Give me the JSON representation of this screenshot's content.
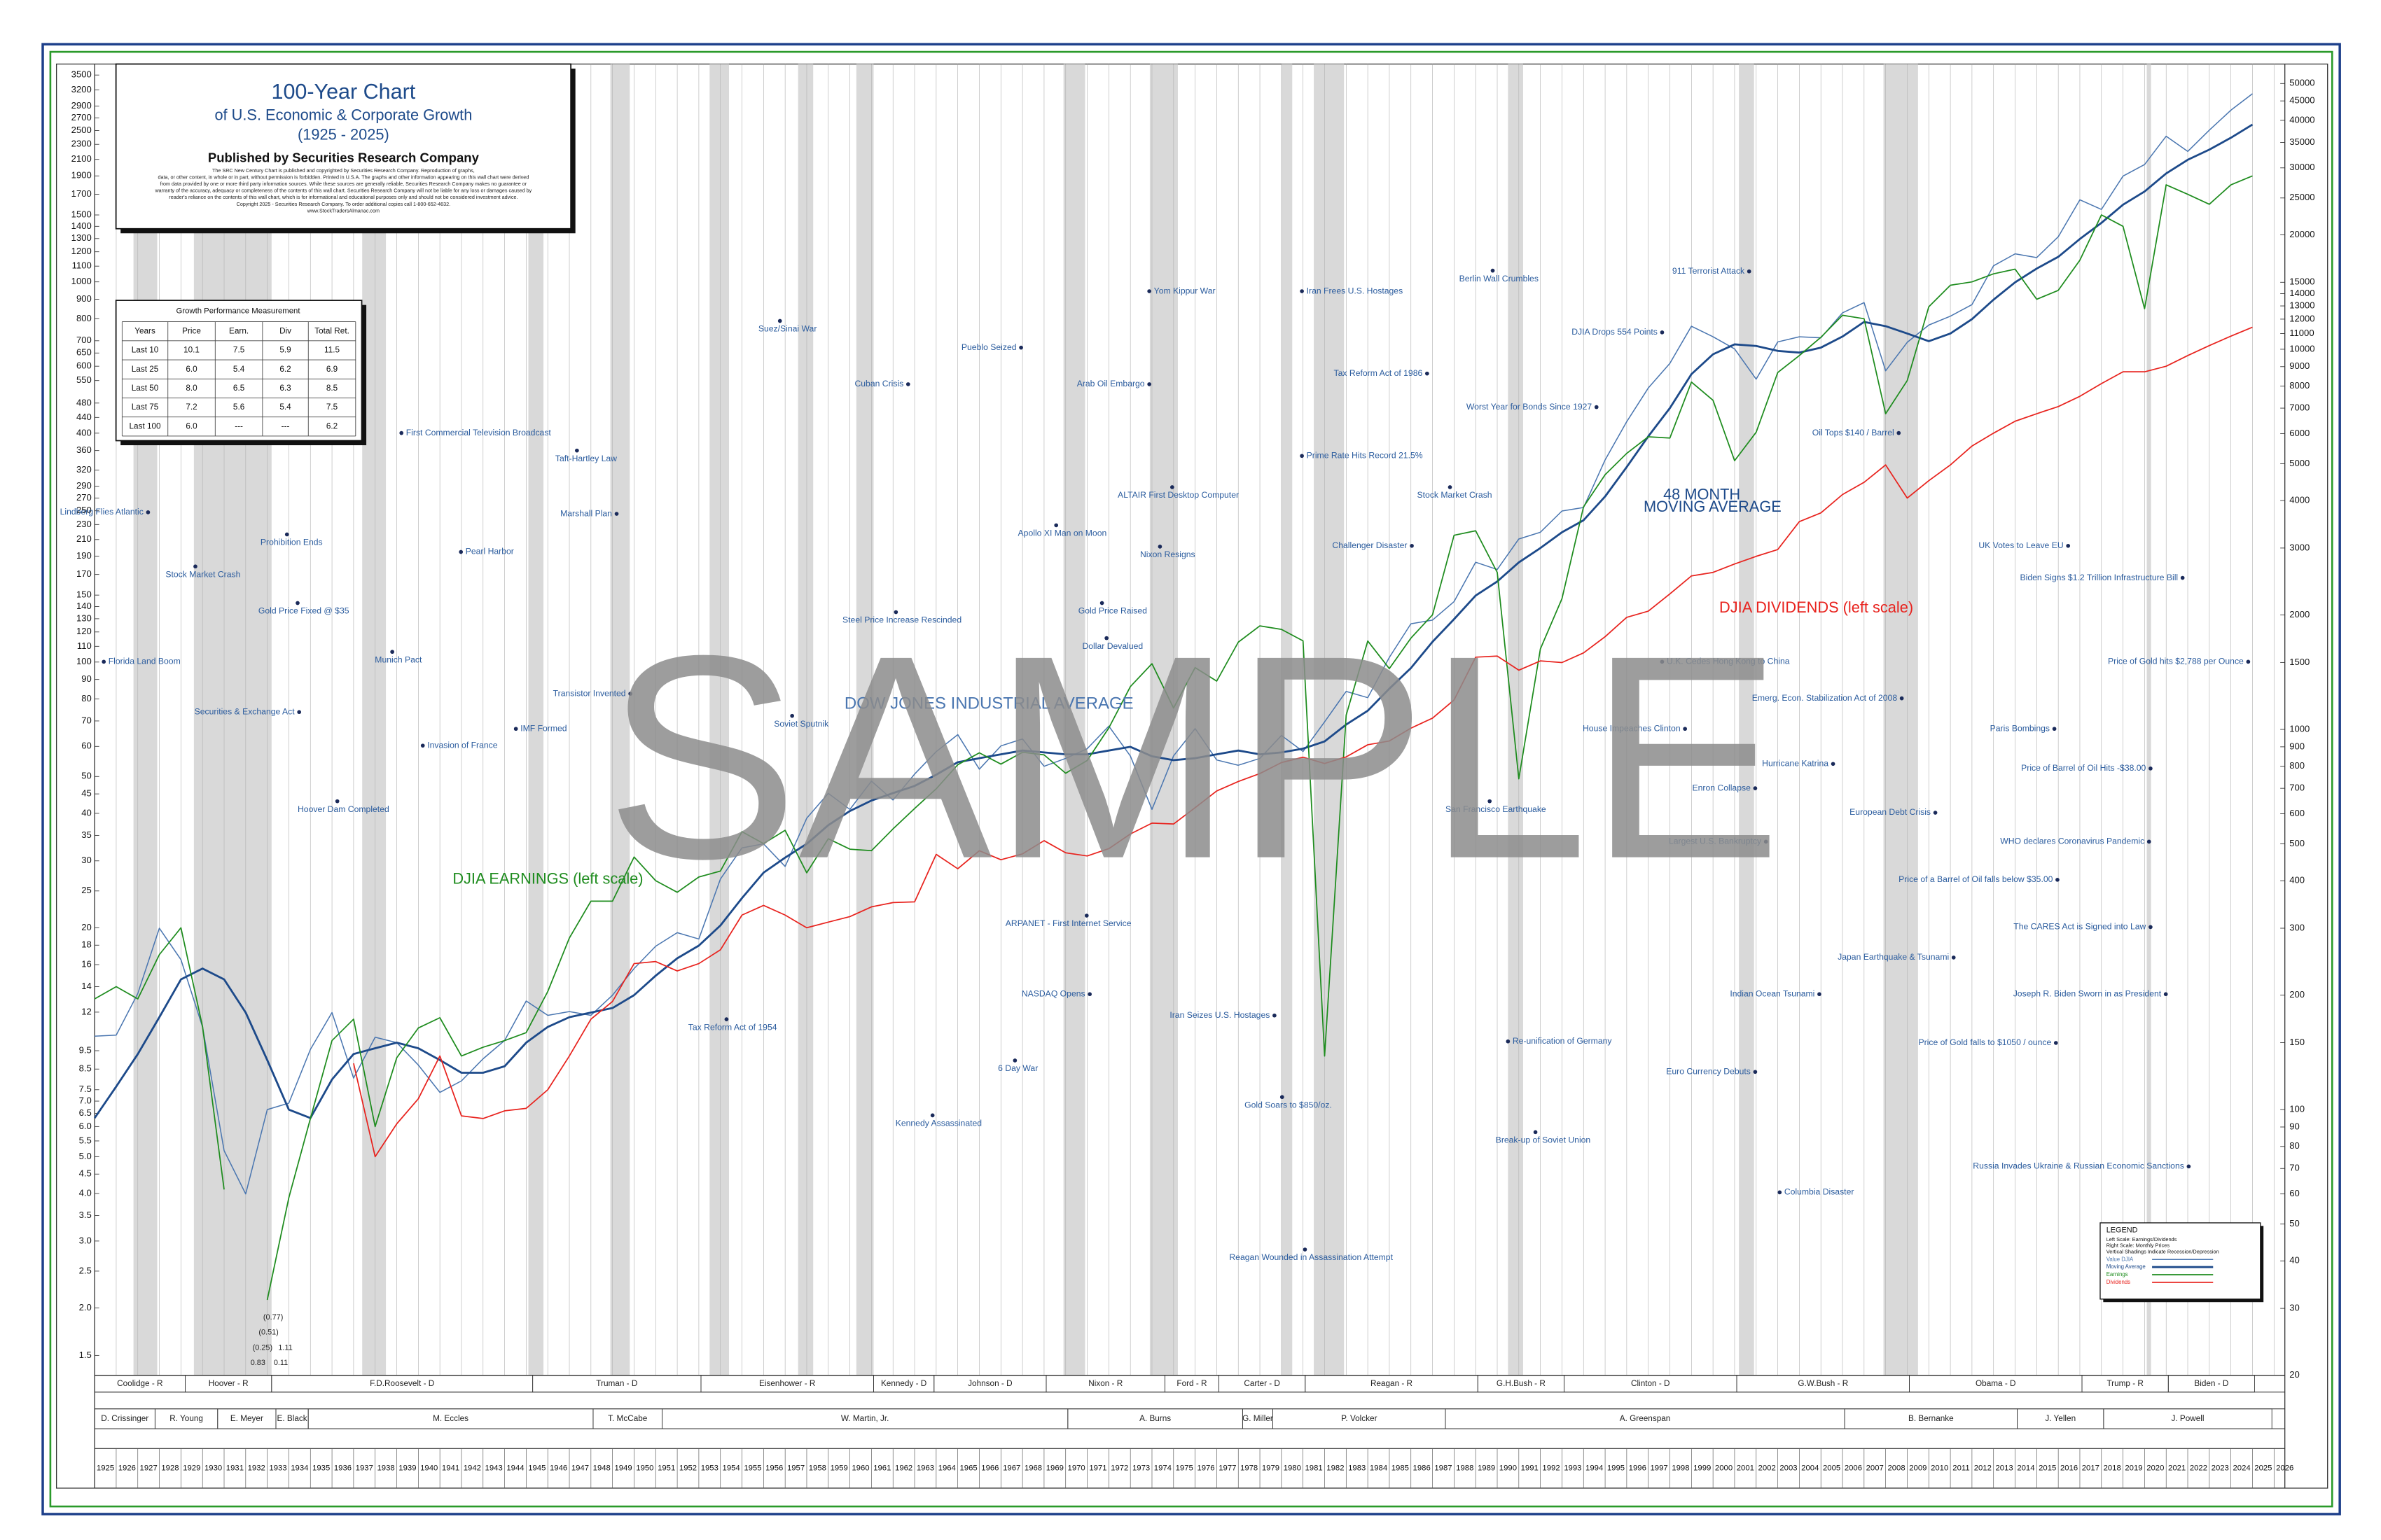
{
  "chart_data": {
    "type": "line",
    "title": "100-Year Chart",
    "subtitle": "of U.S. Economic & Corporate Growth",
    "period": "(1925 - 2025)",
    "publisher": "Published by Securities Research Company",
    "disclaimer": [
      "The SRC New Century Chart is published and copyrighted by Securities Research Company. Reproduction of graphs,",
      "data, or other content, in whole or in part, without permission is forbidden. Printed in U.S.A. The graphs and other information appearing on this wall chart were derived",
      "from data provided by one or more third party information sources. While these sources are generally reliable, Securities Research Company makes no guarantee or",
      "warranty of the accuracy, adequacy or completeness of the contents of this wall chart. Securities Research Company will not be liable for any loss or damages caused by",
      "reader's reliance on the contents of this wall chart, which is for informational and educational purposes only and should not be considered investment advice.",
      "Copyright 2025 - Securities Research Company. To order additional copies call 1-800-652-4632.",
      "www.StockTradersAlmanac.com"
    ],
    "watermark": "SAMPLE",
    "log_scale": true,
    "xlim": [
      1925,
      2026.5
    ],
    "ylim": [
      1.33,
      3741
    ],
    "y2lim": [
      20,
      56260
    ],
    "x": [
      1925,
      1926,
      1927,
      1928,
      1929,
      1930,
      1931,
      1932,
      1933,
      1934,
      1935,
      1936,
      1937,
      1938,
      1939,
      1940,
      1941,
      1942,
      1943,
      1944,
      1945,
      1946,
      1947,
      1948,
      1949,
      1950,
      1951,
      1952,
      1953,
      1954,
      1955,
      1956,
      1957,
      1958,
      1959,
      1960,
      1961,
      1962,
      1963,
      1964,
      1965,
      1966,
      1967,
      1968,
      1969,
      1970,
      1971,
      1972,
      1973,
      1974,
      1975,
      1976,
      1977,
      1978,
      1979,
      1980,
      1981,
      1982,
      1983,
      1984,
      1985,
      1986,
      1987,
      1988,
      1989,
      1990,
      1991,
      1992,
      1993,
      1994,
      1995,
      1996,
      1997,
      1998,
      1999,
      2000,
      2001,
      2002,
      2003,
      2004,
      2005,
      2006,
      2007,
      2008,
      2009,
      2010,
      2011,
      2012,
      2013,
      2014,
      2015,
      2016,
      2017,
      2018,
      2019,
      2020,
      2021,
      2022,
      2023,
      2024,
      2025
    ],
    "xticks": [
      1925,
      1926,
      1927,
      1928,
      1929,
      1930,
      1931,
      1932,
      1933,
      1934,
      1935,
      1936,
      1937,
      1938,
      1939,
      1940,
      1941,
      1942,
      1943,
      1944,
      1945,
      1946,
      1947,
      1948,
      1949,
      1950,
      1951,
      1952,
      1953,
      1954,
      1955,
      1956,
      1957,
      1958,
      1959,
      1960,
      1961,
      1962,
      1963,
      1964,
      1965,
      1966,
      1967,
      1968,
      1969,
      1970,
      1971,
      1972,
      1973,
      1974,
      1975,
      1976,
      1977,
      1978,
      1979,
      1980,
      1981,
      1982,
      1983,
      1984,
      1985,
      1986,
      1987,
      1988,
      1989,
      1990,
      1991,
      1992,
      1993,
      1994,
      1995,
      1996,
      1997,
      1998,
      1999,
      2000,
      2001,
      2002,
      2003,
      2004,
      2005,
      2006,
      2007,
      2008,
      2009,
      2010,
      2011,
      2012,
      2013,
      2014,
      2015,
      2016,
      2017,
      2018,
      2019,
      2020,
      2021,
      2022,
      2023,
      2024,
      2025,
      2026
    ],
    "yticks": [
      1.5,
      {
        "value": 2,
        "label": "2.0"
      },
      2.5,
      {
        "value": 3,
        "label": "3.0"
      },
      3.5,
      {
        "value": 4,
        "label": "4.0"
      },
      4.5,
      {
        "value": 5,
        "label": "5.0"
      },
      5.5,
      {
        "value": 6,
        "label": "6.0"
      },
      6.5,
      {
        "value": 7,
        "label": "7.0"
      },
      7.5,
      8.5,
      9.5,
      12,
      14,
      16,
      18,
      20,
      25,
      30,
      35,
      40,
      45,
      50,
      60,
      70,
      80,
      90,
      100,
      110,
      120,
      130,
      140,
      150,
      170,
      190,
      210,
      230,
      250,
      270,
      290,
      320,
      360,
      400,
      440,
      480,
      550,
      600,
      650,
      700,
      800,
      900,
      1000,
      1100,
      1200,
      1300,
      1400,
      1500,
      1700,
      1900,
      2100,
      2300,
      2500,
      2700,
      2900,
      3200,
      3500
    ],
    "y2ticks": [
      20,
      30,
      40,
      50,
      60,
      70,
      80,
      90,
      100,
      150,
      200,
      300,
      400,
      500,
      600,
      700,
      800,
      900,
      1000,
      1500,
      2000,
      3000,
      4000,
      5000,
      6000,
      7000,
      8000,
      9000,
      10000,
      11000,
      12000,
      13000,
      14000,
      15000,
      20000,
      25000,
      30000,
      35000,
      40000,
      45000,
      50000
    ],
    "recessions": [
      [
        1926.8,
        1927.9
      ],
      [
        1929.6,
        1933.2
      ],
      [
        1937.4,
        1938.5
      ],
      [
        1945.1,
        1945.8
      ],
      [
        1948.9,
        1949.8
      ],
      [
        1953.5,
        1954.4
      ],
      [
        1957.6,
        1958.3
      ],
      [
        1960.3,
        1961.1
      ],
      [
        1969.9,
        1970.9
      ],
      [
        1973.9,
        1975.2
      ],
      [
        1980.0,
        1980.5
      ],
      [
        1981.5,
        1982.9
      ],
      [
        1990.5,
        1991.2
      ],
      [
        2001.2,
        2001.9
      ],
      [
        2007.9,
        2009.5
      ],
      [
        2020.1,
        2020.3
      ]
    ],
    "series": [
      {
        "name": "Value DJIA",
        "label_lines": [
          "DOW JONES INDUSTRIAL AVERAGE"
        ],
        "axis": "y2",
        "color": "#4a76b0",
        "values": [
          156,
          157,
          202,
          300,
          248,
          165,
          78,
          60,
          100,
          104,
          144,
          180,
          121,
          155,
          150,
          131,
          111,
          119,
          136,
          152,
          193,
          177,
          181,
          177,
          200,
          235,
          269,
          292,
          281,
          404,
          488,
          500,
          436,
          584,
          679,
          616,
          731,
          652,
          763,
          874,
          969,
          786,
          905,
          944,
          800,
          839,
          890,
          1020,
          851,
          616,
          852,
          1005,
          831,
          805,
          839,
          964,
          875,
          1047,
          1259,
          1212,
          1547,
          1896,
          1939,
          2169,
          2753,
          2634,
          3169,
          3301,
          3754,
          3834,
          5117,
          6448,
          7908,
          9181,
          11497,
          10787,
          10021,
          8342,
          10454,
          10783,
          10718,
          12463,
          13265,
          8776,
          10428,
          11578,
          12218,
          13104,
          16577,
          17823,
          17425,
          19763,
          24719,
          23327,
          28538,
          30606,
          36338,
          33147,
          37690,
          42544,
          47000
        ]
      },
      {
        "name": "Moving Average",
        "label_lines": [
          "48 MONTH",
          "MOVING AVERAGE"
        ],
        "axis": "y2",
        "color": "#1d4a8a",
        "values": [
          95,
          115,
          140,
          175,
          220,
          235,
          220,
          180,
          135,
          100,
          95,
          120,
          140,
          145,
          150,
          145,
          135,
          125,
          125,
          130,
          150,
          165,
          175,
          180,
          185,
          200,
          225,
          250,
          270,
          305,
          360,
          420,
          460,
          500,
          560,
          610,
          650,
          680,
          710,
          760,
          820,
          840,
          860,
          880,
          870,
          860,
          860,
          880,
          900,
          850,
          830,
          840,
          860,
          880,
          860,
          870,
          890,
          930,
          1030,
          1120,
          1280,
          1450,
          1700,
          1950,
          2250,
          2450,
          2750,
          3000,
          3300,
          3550,
          4100,
          4900,
          5900,
          7000,
          8600,
          9700,
          10300,
          10200,
          9900,
          9800,
          10100,
          10800,
          11800,
          11500,
          11000,
          10500,
          11000,
          12000,
          13500,
          15000,
          16300,
          17500,
          19500,
          21500,
          24000,
          26000,
          29000,
          31500,
          33500,
          36000,
          39000
        ]
      },
      {
        "name": "Earnings",
        "label_lines": [
          "DJIA EARNINGS (left scale)"
        ],
        "axis": "y",
        "color": "#1e8c1e",
        "values": [
          13,
          14,
          13,
          17,
          20,
          11,
          4.1,
          null,
          2.1,
          3.9,
          6.3,
          10.1,
          11.5,
          6,
          9.1,
          10.9,
          11.6,
          9.2,
          9.7,
          10.1,
          10.6,
          13.6,
          18.8,
          23.5,
          23.5,
          30.7,
          26.6,
          24.8,
          27.2,
          28.2,
          35.8,
          33.3,
          36.1,
          27.9,
          34.3,
          32.2,
          31.9,
          36.4,
          41.2,
          46.4,
          53.7,
          57.7,
          53.9,
          57.9,
          57,
          51,
          55.1,
          67.1,
          86.2,
          99,
          75.7,
          96.7,
          89.1,
          112.8,
          124.5,
          121.9,
          113.7,
          9.2,
          72.5,
          113.6,
          96.1,
          115.6,
          133.1,
          215.5,
          221.5,
          172.1,
          49.3,
          108.3,
          146.8,
          256.1,
          311,
          353.9,
          391.3,
          388.4,
          545,
          488.1,
          338.6,
          402.3,
          577.6,
          640,
          715,
          817,
          800,
          450,
          550,
          860,
          980,
          1000,
          1050,
          1080,
          900,
          950,
          1140,
          1500,
          1400,
          850,
          1800,
          1700,
          1600,
          1800,
          1900
        ]
      },
      {
        "name": "Dividends",
        "label_lines": [
          "DJIA DIVIDENDS (left scale)"
        ],
        "axis": "y",
        "color": "#e8231e",
        "values": [
          null,
          null,
          null,
          null,
          null,
          null,
          null,
          null,
          null,
          null,
          null,
          null,
          8.8,
          5.0,
          6.1,
          7.1,
          9.2,
          6.4,
          6.3,
          6.6,
          6.7,
          7.5,
          9.2,
          11.5,
          12.8,
          16.1,
          16.3,
          15.4,
          16.1,
          17.5,
          21.6,
          22.9,
          21.6,
          20.0,
          20.7,
          21.4,
          22.7,
          23.3,
          23.4,
          31.2,
          28.6,
          31.9,
          30.2,
          31.3,
          33.9,
          31.5,
          30.9,
          32.3,
          35.3,
          37.7,
          37.5,
          41.4,
          45.8,
          48.5,
          50.9,
          54.4,
          56.2,
          54.1,
          56.3,
          60.6,
          62.0,
          67.0,
          71.2,
          79.5,
          103.0,
          103.7,
          95.2,
          100.7,
          99.7,
          105.7,
          116.6,
          131.1,
          136.1,
          151.1,
          168.5,
          172.1,
          181.1,
          189.7,
          197.7,
          234.1,
          246.8,
          275.8,
          297,
          330,
          270,
          300,
          330,
          370,
          400,
          430,
          450,
          470,
          500,
          540,
          580,
          580,
          600,
          640,
          680,
          720,
          760
        ]
      }
    ],
    "annotations": [
      "Lindberg Flies Atlantic",
      "Florida Land Boom",
      "Stock Market Crash",
      "Prohibition Ends",
      "Gold Price Fixed @ $35",
      "Securities & Exchange Act",
      "Hoover Dam Completed",
      "Munich Pact",
      "First Commercial Television Broadcast",
      "Invasion of France",
      "Pearl Harbor",
      "IMF Formed",
      "Taft-Hartley Law",
      "Marshall Plan",
      "Transistor Invented",
      "Tax Reform Act of 1954",
      "Suez/Sinai War",
      "Soviet Sputnik",
      "Cuban Crisis",
      "Steel Price Increase Rescinded",
      "Pueblo Seized",
      "Kennedy Assassinated",
      "Apollo XI Man on Moon",
      "Arab Oil Embargo",
      "Yom Kippur War",
      "6 Day War",
      "ARPANET - First Internet Service",
      "NASDAQ Opens",
      "Gold Price Raised",
      "Dollar Devalued",
      "ALTAIR First Desktop Computer",
      "Nixon Resigns",
      "Iran Seizes U.S. Hostages",
      "Gold Soars to $850/oz.",
      "Reagan Wounded in Assassination Attempt",
      "Iran Frees U.S. Hostages",
      "Tax Reform Act of 1986",
      "Prime Rate Hits Record 21.5%",
      "Challenger Disaster",
      "Stock Market Crash",
      "Worst Year for Bonds Since 1927",
      "Berlin Wall Crumbles",
      "San Francisco Earthquake",
      "Re-unification of Germany",
      "Break-up of Soviet Union",
      "911 Terrorist Attack",
      "DJIA Drops 554 Points",
      "U.K. Cedes Hong Kong to China",
      "House Impeaches Clinton",
      "Oil Tops $140 / Barrel",
      "Emerg. Econ. Stabilization Act of 2008",
      "Hurricane Katrina",
      "Enron Collapse",
      "Largest U.S. Bankruptcy",
      "Indian Ocean Tsunami",
      "Euro Currency Debuts",
      "Columbia Disaster",
      "European Debt Crisis",
      "Japan Earthquake & Tsunami",
      "Price of a Barrel of Oil falls below $35.00",
      "Price of Gold falls to $1050 / ounce",
      "UK Votes to Leave EU",
      "Paris Bombings",
      "Price of Barrel of Oil Hits -$38.00",
      "WHO declares Coronavirus Pandemic",
      "The CARES Act is Signed into Law",
      "Joseph R. Biden Sworn in as President",
      "Biden Signs $1.2 Trillion Infrastructure Bill",
      "Price of Gold hits $2,788 per Ounce",
      "Russia Invades Ukraine & Russian Economic Sanctions"
    ],
    "earnings_notes": [
      "(0.77)",
      "(0.51)",
      "(0.25)",
      "1.11",
      "0.83",
      "0.11"
    ],
    "presidents": [
      {
        "name": "Coolidge - R",
        "start": 1925,
        "end": 1929.2
      },
      {
        "name": "Hoover - R",
        "start": 1929.2,
        "end": 1933.2
      },
      {
        "name": "F.D.Roosevelt - D",
        "start": 1933.2,
        "end": 1945.3
      },
      {
        "name": "Truman - D",
        "start": 1945.3,
        "end": 1953.1
      },
      {
        "name": "Eisenhower - R",
        "start": 1953.1,
        "end": 1961.1
      },
      {
        "name": "Kennedy - D",
        "start": 1961.1,
        "end": 1963.9
      },
      {
        "name": "Johnson - D",
        "start": 1963.9,
        "end": 1969.1
      },
      {
        "name": "Nixon - R",
        "start": 1969.1,
        "end": 1974.6
      },
      {
        "name": "Ford - R",
        "start": 1974.6,
        "end": 1977.1
      },
      {
        "name": "Carter - D",
        "start": 1977.1,
        "end": 1981.1
      },
      {
        "name": "Reagan - R",
        "start": 1981.1,
        "end": 1989.1
      },
      {
        "name": "G.H.Bush - R",
        "start": 1989.1,
        "end": 1993.1
      },
      {
        "name": "Clinton - D",
        "start": 1993.1,
        "end": 2001.1
      },
      {
        "name": "G.W.Bush - R",
        "start": 2001.1,
        "end": 2009.1
      },
      {
        "name": "Obama - D",
        "start": 2009.1,
        "end": 2017.1
      },
      {
        "name": "Trump - R",
        "start": 2017.1,
        "end": 2021.1
      },
      {
        "name": "Biden - D",
        "start": 2021.1,
        "end": 2025.1
      }
    ],
    "fed_chairs": [
      {
        "name": "D. Crissinger",
        "start": 1925,
        "end": 1927.8
      },
      {
        "name": "R. Young",
        "start": 1927.8,
        "end": 1930.7
      },
      {
        "name": "E. Meyer",
        "start": 1930.7,
        "end": 1933.4
      },
      {
        "name": "E. Black",
        "start": 1933.4,
        "end": 1934.9
      },
      {
        "name": "M. Eccles",
        "start": 1934.9,
        "end": 1948.1
      },
      {
        "name": "T. McCabe",
        "start": 1948.1,
        "end": 1951.3
      },
      {
        "name": "W. Martin, Jr.",
        "start": 1951.3,
        "end": 1970.1
      },
      {
        "name": "A. Burns",
        "start": 1970.1,
        "end": 1978.2
      },
      {
        "name": "G. Miller",
        "start": 1978.2,
        "end": 1979.6
      },
      {
        "name": "P. Volcker",
        "start": 1979.6,
        "end": 1987.6
      },
      {
        "name": "A. Greenspan",
        "start": 1987.6,
        "end": 2006.1
      },
      {
        "name": "B. Bernanke",
        "start": 2006.1,
        "end": 2014.1
      },
      {
        "name": "J. Yellen",
        "start": 2014.1,
        "end": 2018.1
      },
      {
        "name": "J. Powell",
        "start": 2018.1,
        "end": 2025.9
      }
    ],
    "growth_table": {
      "title": "Growth Performance Measurement",
      "header": [
        "Years",
        "Price",
        "Earn.",
        "Div",
        "Total Ret."
      ],
      "rows": [
        [
          "Last 10",
          "10.1",
          "7.5",
          "5.9",
          "11.5"
        ],
        [
          "Last 25",
          "6.0",
          "5.4",
          "6.2",
          "6.9"
        ],
        [
          "Last 50",
          "8.0",
          "6.5",
          "6.3",
          "8.5"
        ],
        [
          "Last 75",
          "7.2",
          "5.6",
          "5.4",
          "7.5"
        ],
        [
          "Last 100",
          "6.0",
          "---",
          "---",
          "6.2"
        ]
      ]
    },
    "legend": {
      "title": "LEGEND",
      "notes": [
        "Left Scale: Earnings/Dividends",
        "Right Scale: Monthly Prices",
        "Vertical Shadings Indicate Recession/Depression"
      ]
    }
  }
}
